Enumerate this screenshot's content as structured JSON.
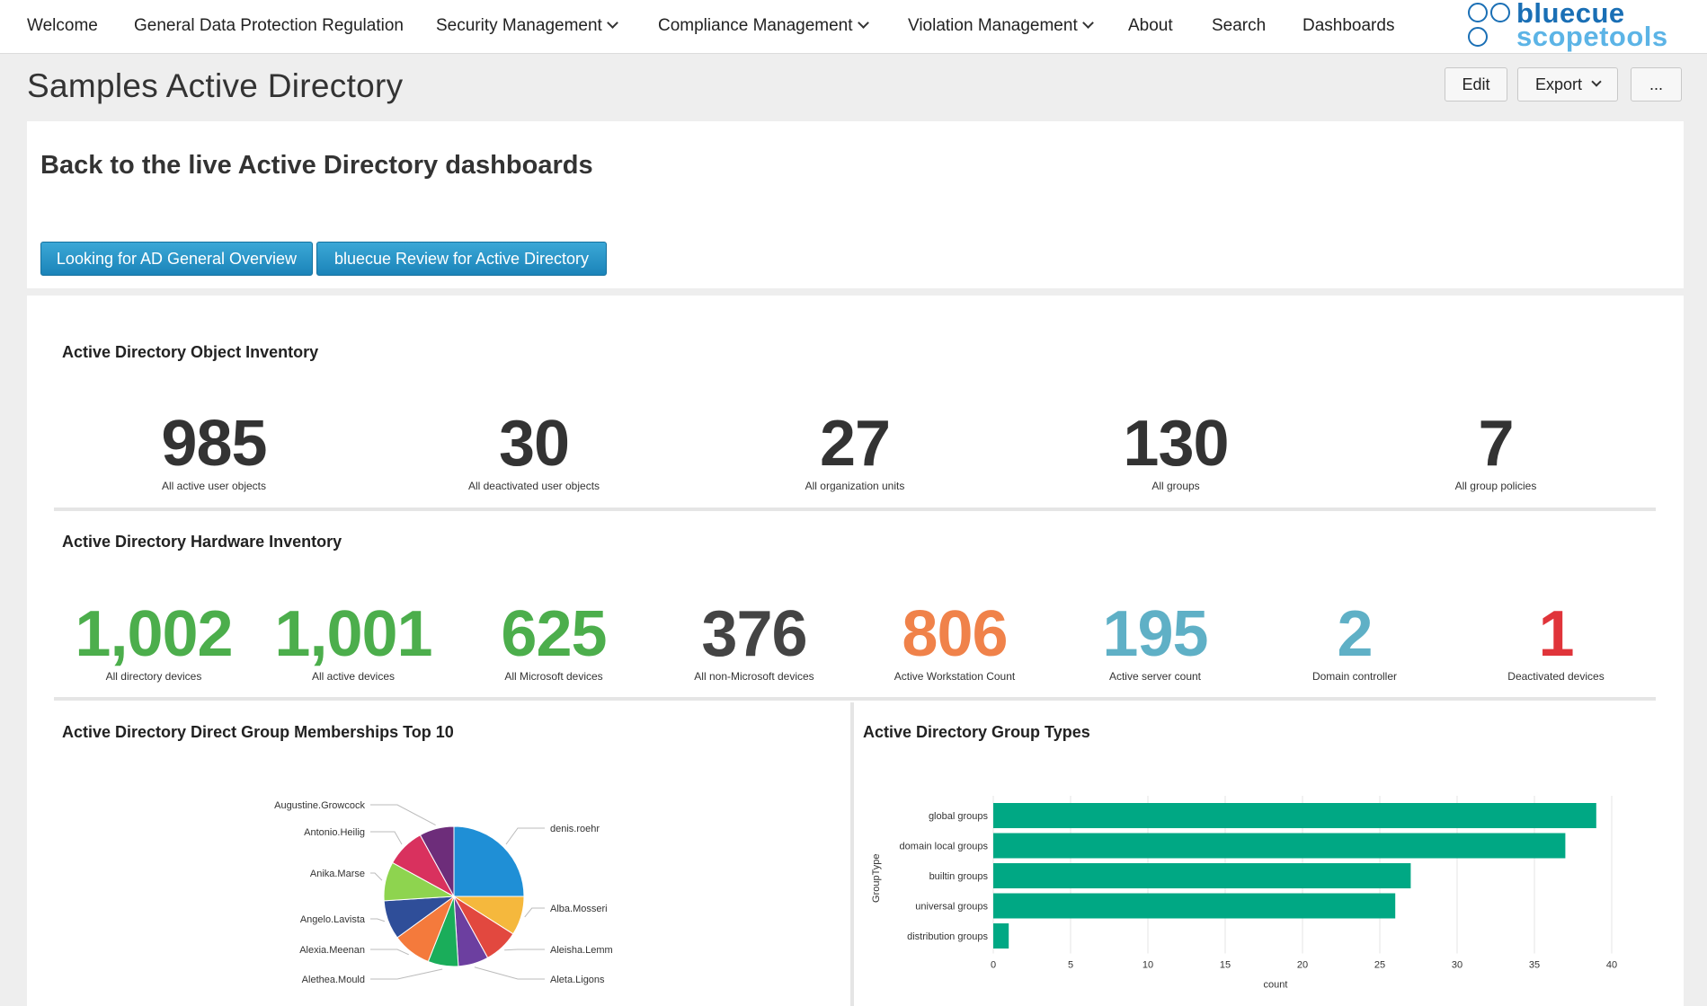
{
  "nav": {
    "welcome": "Welcome",
    "gdpr": "General Data Protection Regulation",
    "security": "Security Management",
    "compliance": "Compliance Management",
    "violation": "Violation Management",
    "about": "About",
    "search": "Search",
    "dashboards": "Dashboards"
  },
  "logo": {
    "line1": "bluecue",
    "line2": "scopetools"
  },
  "page": {
    "title": "Samples Active Directory",
    "edit_label": "Edit",
    "export_label": "Export",
    "more_label": "..."
  },
  "banner": {
    "title": "Back to the live Active Directory dashboards",
    "btn1": "Looking for AD General Overview",
    "btn2": "bluecue Review for Active Directory"
  },
  "object_inventory": {
    "title": "Active Directory Object Inventory",
    "items": [
      {
        "value": "985",
        "label": "All active user objects"
      },
      {
        "value": "30",
        "label": "All deactivated user objects"
      },
      {
        "value": "27",
        "label": "All organization units"
      },
      {
        "value": "130",
        "label": "All groups"
      },
      {
        "value": "7",
        "label": "All group policies"
      }
    ]
  },
  "hardware_inventory": {
    "title": "Active Directory Hardware Inventory",
    "items": [
      {
        "value": "1,002",
        "label": "All directory devices",
        "color": "#4cae4c"
      },
      {
        "value": "1,001",
        "label": "All active devices",
        "color": "#4cae4c"
      },
      {
        "value": "625",
        "label": "All Microsoft devices",
        "color": "#4cae4c"
      },
      {
        "value": "376",
        "label": "All non-Microsoft devices",
        "color": "#444444"
      },
      {
        "value": "806",
        "label": "Active Workstation Count",
        "color": "#f0824a"
      },
      {
        "value": "195",
        "label": "Active server count",
        "color": "#5fb0c6"
      },
      {
        "value": "2",
        "label": "Domain controller",
        "color": "#5fb0c6"
      },
      {
        "value": "1",
        "label": "Deactivated devices",
        "color": "#e0343a"
      }
    ]
  },
  "group_memberships": {
    "title": "Active Directory Direct Group Memberships Top 10"
  },
  "group_types": {
    "title": "Active Directory Group Types"
  },
  "chart_data": [
    {
      "type": "pie",
      "title": "Active Directory Direct Group Memberships Top 10",
      "categories": [
        "denis.roehr",
        "Alba.Mosseri",
        "Aleisha.Lemm",
        "Aleta.Ligons",
        "Alethea.Mould",
        "Alexia.Meenan",
        "Angelo.Lavista",
        "Anika.Marse",
        "Antonio.Heilig",
        "Augustine.Growcock"
      ],
      "values": [
        25,
        9,
        8,
        7,
        7,
        9,
        9,
        9,
        9,
        8
      ],
      "colors": [
        "#1f8fd6",
        "#f5b83d",
        "#e2483f",
        "#6c3fa0",
        "#1aad5a",
        "#f47a3c",
        "#2f4e99",
        "#8ed44f",
        "#d9315e",
        "#6d2d7a"
      ]
    },
    {
      "type": "bar",
      "orientation": "horizontal",
      "title": "Active Directory Group Types",
      "categories": [
        "global groups",
        "domain local groups",
        "builtin groups",
        "universal groups",
        "distribution groups"
      ],
      "values": [
        39,
        37,
        27,
        26,
        1
      ],
      "xlabel": "count",
      "ylabel": "GroupType",
      "xlim": [
        0,
        40
      ],
      "xticks": [
        0,
        5,
        10,
        15,
        20,
        25,
        30,
        35,
        40
      ],
      "color": "#00a884",
      "grid": true
    }
  ]
}
